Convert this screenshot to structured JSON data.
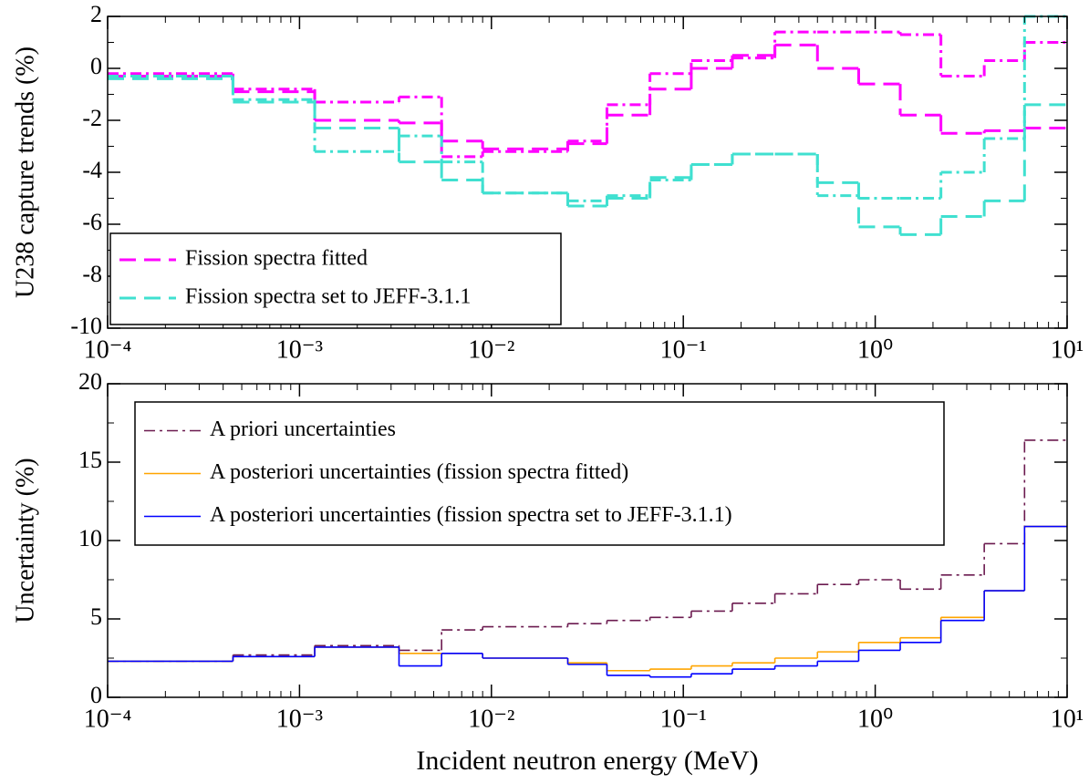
{
  "chart_data": [
    {
      "type": "step",
      "ylabel": "U238 capture trends (%)",
      "log_x": true,
      "legend": "lower left",
      "xlim": [
        0.0001,
        10
      ],
      "ylim": [
        -10,
        2
      ],
      "xticks": [
        {
          "value": 0.0001,
          "label": "10⁻⁴"
        },
        {
          "value": 0.001,
          "label": "10⁻³"
        },
        {
          "value": 0.01,
          "label": "10⁻²"
        },
        {
          "value": 0.1,
          "label": "10⁻¹"
        },
        {
          "value": 1,
          "label": "10⁰"
        },
        {
          "value": 10,
          "label": "10¹"
        }
      ],
      "yticks": [
        -10,
        -8,
        -6,
        -4,
        -2,
        0,
        2
      ],
      "x": [
        0.0001,
        0.00045,
        0.0012,
        0.0033,
        0.0055,
        0.009,
        0.025,
        0.04,
        0.067,
        0.11,
        0.18,
        0.3,
        0.5,
        0.82,
        1.35,
        2.2,
        3.7,
        6.0
      ],
      "series": [
        {
          "name": "Fission spectra fitted",
          "color": "#ff00ff",
          "dash": "dash",
          "values": [
            -0.3,
            -0.9,
            -2.0,
            -2.1,
            -2.8,
            -3.1,
            -2.9,
            -1.8,
            -0.8,
            0.0,
            0.5,
            0.9,
            0.0,
            -0.6,
            -1.8,
            -2.5,
            -2.4,
            -2.3
          ]
        },
        {
          "color": "#ff00ff",
          "dash": "dashdot",
          "values": [
            -0.2,
            -0.8,
            -1.3,
            -1.1,
            -3.4,
            -3.2,
            -2.8,
            -1.4,
            -0.2,
            0.3,
            0.4,
            1.4,
            1.4,
            1.4,
            1.3,
            -0.3,
            0.3,
            1.0
          ]
        },
        {
          "name": "Fission spectra set to JEFF-3.1.1",
          "color": "#40e0d0",
          "dash": "dash",
          "values": [
            -0.4,
            -1.3,
            -2.3,
            -3.6,
            -4.3,
            -4.8,
            -5.3,
            -5.0,
            -4.2,
            -3.7,
            -3.3,
            -3.3,
            -4.4,
            -6.1,
            -6.4,
            -5.7,
            -5.1,
            -1.4
          ]
        },
        {
          "color": "#40e0d0",
          "dash": "dashdot",
          "values": [
            -0.3,
            -1.2,
            -3.2,
            -2.6,
            -3.6,
            -4.8,
            -5.1,
            -4.9,
            -4.3,
            -3.7,
            -3.3,
            -3.3,
            -4.9,
            -5.0,
            -5.0,
            -4.0,
            -2.7,
            2.0
          ]
        }
      ]
    },
    {
      "type": "step",
      "ylabel": "Uncertainty (%)",
      "xlabel": "Incident neutron energy (MeV)",
      "log_x": true,
      "legend": "upper left",
      "xlim": [
        0.0001,
        10
      ],
      "ylim": [
        0,
        20
      ],
      "xticks": [
        {
          "value": 0.0001,
          "label": "10⁻⁴"
        },
        {
          "value": 0.001,
          "label": "10⁻³"
        },
        {
          "value": 0.01,
          "label": "10⁻²"
        },
        {
          "value": 0.1,
          "label": "10⁻¹"
        },
        {
          "value": 1,
          "label": "10⁰"
        },
        {
          "value": 10,
          "label": "10¹"
        }
      ],
      "yticks": [
        0,
        5,
        10,
        15,
        20
      ],
      "x": [
        0.0001,
        0.00045,
        0.0012,
        0.0033,
        0.0055,
        0.009,
        0.025,
        0.04,
        0.067,
        0.11,
        0.18,
        0.3,
        0.5,
        0.82,
        1.35,
        2.2,
        3.7,
        6.0
      ],
      "series": [
        {
          "name": "A priori uncertainties",
          "color": "#6b1a4f",
          "dash": "dashdot",
          "values": [
            2.3,
            2.7,
            3.3,
            3.0,
            4.3,
            4.5,
            4.7,
            4.9,
            5.1,
            5.5,
            6.0,
            6.6,
            7.2,
            7.5,
            6.9,
            7.8,
            9.8,
            16.4
          ]
        },
        {
          "name": "A posteriori uncertainties (fission spectra fitted)",
          "color": "#ffa500",
          "dash": "solid",
          "values": [
            2.3,
            2.6,
            3.2,
            2.8,
            2.8,
            2.5,
            2.2,
            1.7,
            1.8,
            2.0,
            2.2,
            2.5,
            2.9,
            3.5,
            3.8,
            5.1,
            6.8,
            10.9
          ]
        },
        {
          "name": "A posteriori uncertainties (fission spectra set to JEFF-3.1.1)",
          "color": "#0000ff",
          "dash": "solid",
          "values": [
            2.3,
            2.6,
            3.2,
            2.0,
            2.8,
            2.5,
            2.1,
            1.4,
            1.3,
            1.5,
            1.8,
            2.0,
            2.3,
            3.0,
            3.5,
            4.9,
            6.8,
            10.9
          ]
        }
      ]
    }
  ]
}
